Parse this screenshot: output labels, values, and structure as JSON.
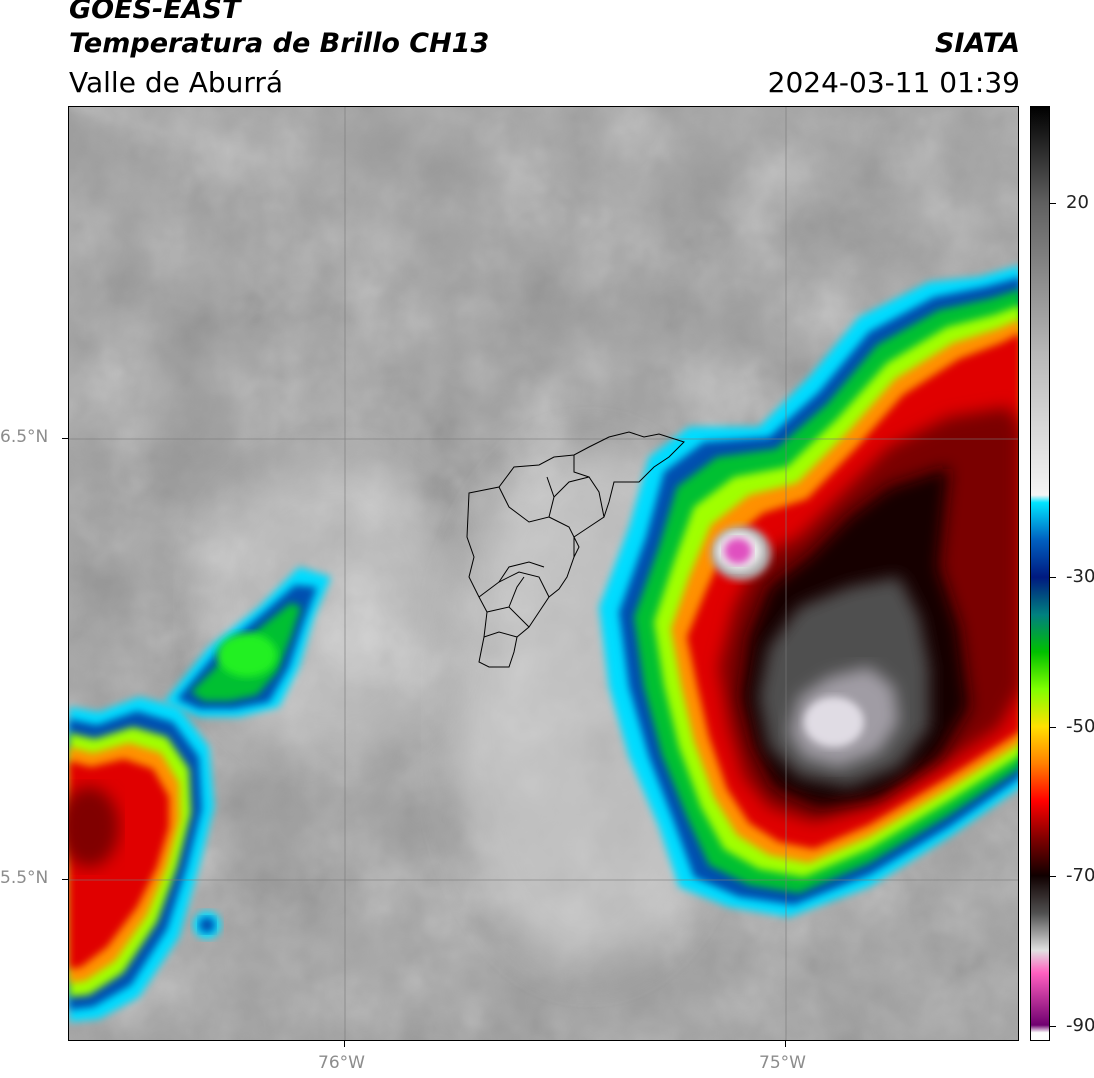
{
  "header": {
    "satellite": "GOES-EAST",
    "product": "Temperatura de Brillo CH13",
    "region": "Valle de Aburrá",
    "agency": "SIATA",
    "timestamp": "2024-03-11 01:39"
  },
  "map": {
    "lat_labels": [
      "6.5°N",
      "5.5°N"
    ],
    "lon_labels": [
      "76°W",
      "75°W"
    ],
    "gridline_color": "#888888"
  },
  "colorbar": {
    "range": [
      -92,
      33
    ],
    "ticks": [
      "20",
      "-30",
      "-50",
      "-70",
      "-90"
    ],
    "tick_values": [
      20,
      -30,
      -50,
      -70,
      -90
    ],
    "stops": [
      {
        "v": 33,
        "c": "#000000"
      },
      {
        "v": 20,
        "c": "#606060"
      },
      {
        "v": 0,
        "c": "#b8b8b8"
      },
      {
        "v": -19,
        "c": "#f4f4f4"
      },
      {
        "v": -20,
        "c": "#00e5ff"
      },
      {
        "v": -25,
        "c": "#0060c0"
      },
      {
        "v": -30,
        "c": "#001a80"
      },
      {
        "v": -35,
        "c": "#008080"
      },
      {
        "v": -40,
        "c": "#00c000"
      },
      {
        "v": -45,
        "c": "#80ff00"
      },
      {
        "v": -50,
        "c": "#ffe000"
      },
      {
        "v": -55,
        "c": "#ff8000"
      },
      {
        "v": -60,
        "c": "#ff0000"
      },
      {
        "v": -65,
        "c": "#800000"
      },
      {
        "v": -70,
        "c": "#100000"
      },
      {
        "v": -75,
        "c": "#505050"
      },
      {
        "v": -80,
        "c": "#e0e0e0"
      },
      {
        "v": -83,
        "c": "#ff60c0"
      },
      {
        "v": -90,
        "c": "#700070"
      },
      {
        "v": -91,
        "c": "#ffffff"
      }
    ]
  }
}
